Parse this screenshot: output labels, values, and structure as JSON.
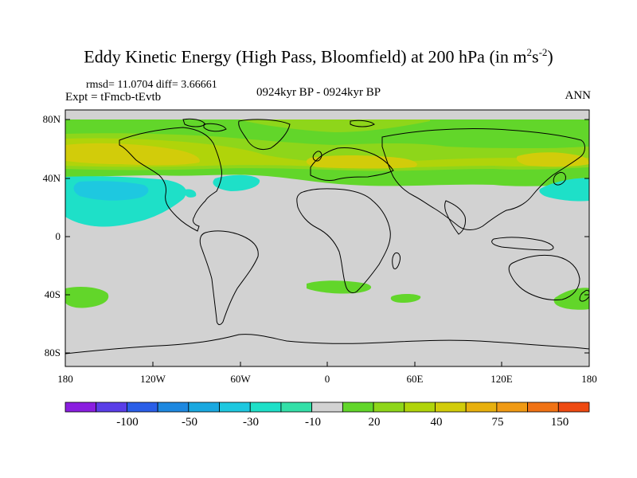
{
  "title": {
    "main": "Eddy Kinetic Energy (High Pass, Bloomfield) at 200 hPa (in m",
    "sup1": "2",
    "mid": "s",
    "sup2": "-2",
    "end": ")"
  },
  "stats": "rmsd= 11.0704 diff= 3.66661",
  "experiment": "Expt = tFmcb-tEvtb",
  "period": "0924kyr BP - 0924kyr BP",
  "season": "ANN",
  "y_axis_labels": [
    "80N",
    "40N",
    "0",
    "40S",
    "80S"
  ],
  "x_axis_labels": [
    "180",
    "120W",
    "60W",
    "0",
    "60E",
    "120E",
    "180"
  ],
  "colorbar": {
    "labels": [
      "-100",
      "-50",
      "-30",
      "-10",
      "20",
      "40",
      "75",
      "150"
    ],
    "colors": [
      "#8a1ee0",
      "#5a3ee8",
      "#2a5ee8",
      "#1e88e0",
      "#1aa8e0",
      "#1ec8e0",
      "#1ee0c8",
      "#34e0a8",
      "#d2d2d2",
      "#62d62a",
      "#8ed61a",
      "#b0d40a",
      "#d2cc0a",
      "#e8b00e",
      "#f09a14",
      "#f07214",
      "#ee4a12"
    ]
  },
  "colors": {
    "neutral": "#d2d2d2",
    "land_outline": "#000000"
  }
}
